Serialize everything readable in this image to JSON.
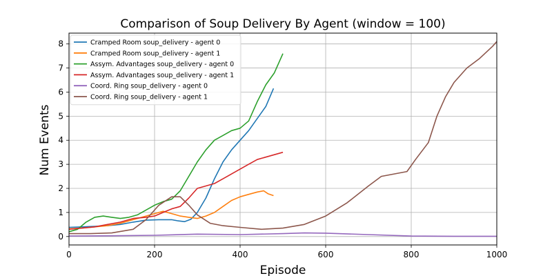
{
  "chart_data": {
    "type": "line",
    "title": "Comparison of Soup Delivery By Agent (window = 100)",
    "xlabel": "Episode",
    "ylabel": "Num Events",
    "xlim": [
      0,
      1000
    ],
    "ylim": [
      -0.35,
      8.45
    ],
    "xticks": [
      0,
      200,
      400,
      600,
      800,
      1000
    ],
    "yticks": [
      0,
      1,
      2,
      3,
      4,
      5,
      6,
      7,
      8
    ],
    "grid": true,
    "legend_position": "upper-left",
    "series": [
      {
        "name": "Cramped Room soup_delivery - agent 0",
        "color": "#1f77b4",
        "points": [
          [
            0,
            0.38
          ],
          [
            30,
            0.4
          ],
          [
            60,
            0.42
          ],
          [
            90,
            0.45
          ],
          [
            120,
            0.5
          ],
          [
            150,
            0.6
          ],
          [
            180,
            0.68
          ],
          [
            210,
            0.7
          ],
          [
            240,
            0.7
          ],
          [
            255,
            0.65
          ],
          [
            270,
            0.62
          ],
          [
            285,
            0.72
          ],
          [
            300,
            1.0
          ],
          [
            320,
            1.6
          ],
          [
            340,
            2.4
          ],
          [
            360,
            3.1
          ],
          [
            380,
            3.6
          ],
          [
            400,
            4.0
          ],
          [
            420,
            4.4
          ],
          [
            440,
            4.9
          ],
          [
            460,
            5.4
          ],
          [
            478,
            6.15
          ]
        ]
      },
      {
        "name": "Cramped Room soup_delivery - agent 1",
        "color": "#ff7f0e",
        "points": [
          [
            0,
            0.32
          ],
          [
            30,
            0.35
          ],
          [
            60,
            0.4
          ],
          [
            90,
            0.45
          ],
          [
            120,
            0.55
          ],
          [
            150,
            0.7
          ],
          [
            180,
            0.85
          ],
          [
            200,
            0.95
          ],
          [
            220,
            1.05
          ],
          [
            240,
            0.95
          ],
          [
            260,
            0.85
          ],
          [
            280,
            0.8
          ],
          [
            300,
            0.75
          ],
          [
            320,
            0.85
          ],
          [
            340,
            1.0
          ],
          [
            360,
            1.25
          ],
          [
            380,
            1.5
          ],
          [
            400,
            1.65
          ],
          [
            420,
            1.75
          ],
          [
            440,
            1.85
          ],
          [
            455,
            1.9
          ],
          [
            465,
            1.78
          ],
          [
            478,
            1.7
          ]
        ]
      },
      {
        "name": "Assym. Advantages soup_delivery - agent 0",
        "color": "#2ca02c",
        "points": [
          [
            0,
            0.2
          ],
          [
            20,
            0.3
          ],
          [
            40,
            0.6
          ],
          [
            60,
            0.8
          ],
          [
            80,
            0.85
          ],
          [
            100,
            0.8
          ],
          [
            120,
            0.75
          ],
          [
            140,
            0.8
          ],
          [
            160,
            0.9
          ],
          [
            180,
            1.1
          ],
          [
            200,
            1.3
          ],
          [
            220,
            1.45
          ],
          [
            240,
            1.55
          ],
          [
            260,
            1.9
          ],
          [
            280,
            2.5
          ],
          [
            300,
            3.1
          ],
          [
            320,
            3.6
          ],
          [
            340,
            4.0
          ],
          [
            360,
            4.2
          ],
          [
            380,
            4.4
          ],
          [
            400,
            4.5
          ],
          [
            420,
            4.8
          ],
          [
            440,
            5.6
          ],
          [
            460,
            6.3
          ],
          [
            480,
            6.8
          ],
          [
            500,
            7.6
          ]
        ]
      },
      {
        "name": "Assym. Advantages soup_delivery - agent 1",
        "color": "#d62728",
        "points": [
          [
            0,
            0.3
          ],
          [
            30,
            0.35
          ],
          [
            60,
            0.4
          ],
          [
            90,
            0.5
          ],
          [
            120,
            0.6
          ],
          [
            150,
            0.75
          ],
          [
            180,
            0.8
          ],
          [
            200,
            0.85
          ],
          [
            220,
            1.0
          ],
          [
            240,
            1.15
          ],
          [
            260,
            1.25
          ],
          [
            280,
            1.6
          ],
          [
            300,
            2.0
          ],
          [
            320,
            2.1
          ],
          [
            340,
            2.2
          ],
          [
            360,
            2.4
          ],
          [
            380,
            2.6
          ],
          [
            400,
            2.8
          ],
          [
            420,
            3.0
          ],
          [
            440,
            3.2
          ],
          [
            460,
            3.3
          ],
          [
            480,
            3.4
          ],
          [
            500,
            3.5
          ]
        ]
      },
      {
        "name": "Coord. Ring soup_delivery - agent 0",
        "color": "#9467bd",
        "points": [
          [
            0,
            0.02
          ],
          [
            100,
            0.03
          ],
          [
            200,
            0.05
          ],
          [
            300,
            0.1
          ],
          [
            400,
            0.08
          ],
          [
            500,
            0.12
          ],
          [
            550,
            0.15
          ],
          [
            600,
            0.14
          ],
          [
            700,
            0.08
          ],
          [
            800,
            0.02
          ],
          [
            900,
            0.01
          ],
          [
            1000,
            0.01
          ]
        ]
      },
      {
        "name": "Coord. Ring soup_delivery - agent 1",
        "color": "#8c564b",
        "points": [
          [
            0,
            0.12
          ],
          [
            50,
            0.12
          ],
          [
            100,
            0.15
          ],
          [
            150,
            0.3
          ],
          [
            180,
            0.7
          ],
          [
            210,
            1.3
          ],
          [
            240,
            1.65
          ],
          [
            260,
            1.65
          ],
          [
            280,
            1.3
          ],
          [
            300,
            0.9
          ],
          [
            330,
            0.55
          ],
          [
            360,
            0.45
          ],
          [
            400,
            0.38
          ],
          [
            450,
            0.3
          ],
          [
            500,
            0.35
          ],
          [
            550,
            0.5
          ],
          [
            600,
            0.85
          ],
          [
            650,
            1.4
          ],
          [
            700,
            2.1
          ],
          [
            730,
            2.5
          ],
          [
            760,
            2.6
          ],
          [
            790,
            2.7
          ],
          [
            810,
            3.2
          ],
          [
            840,
            3.9
          ],
          [
            860,
            5.0
          ],
          [
            880,
            5.8
          ],
          [
            900,
            6.4
          ],
          [
            930,
            7.0
          ],
          [
            960,
            7.4
          ],
          [
            990,
            7.9
          ],
          [
            1000,
            8.1
          ]
        ]
      }
    ]
  }
}
